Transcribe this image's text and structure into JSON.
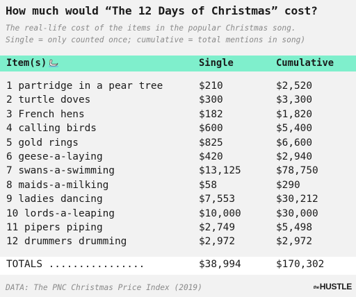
{
  "title": "How much would “The 12 Days of Christmas” cost?",
  "subtitle": [
    "The real-life cost of the items in the popular Christmas song.",
    "Single = only counted once; cumulative = total mentions in song)"
  ],
  "table": {
    "columns": [
      "Item(s)",
      "Single",
      "Cumulative"
    ],
    "header_icon": "swan-icon",
    "rows": [
      {
        "item": "1 partridge in a pear tree",
        "single": "$210",
        "cumulative": "$2,520"
      },
      {
        "item": "2 turtle doves",
        "single": "$300",
        "cumulative": "$3,300"
      },
      {
        "item": "3 French hens",
        "single": "$182",
        "cumulative": "$1,820"
      },
      {
        "item": "4 calling birds",
        "single": "$600",
        "cumulative": "$5,400"
      },
      {
        "item": "5 gold rings",
        "single": "$825",
        "cumulative": "$6,600"
      },
      {
        "item": "6 geese-a-laying",
        "single": "$420",
        "cumulative": "$2,940"
      },
      {
        "item": "7 swans-a-swimming",
        "single": "$13,125",
        "cumulative": "$78,750"
      },
      {
        "item": "8 maids-a-milking",
        "single": "$58",
        "cumulative": "$290"
      },
      {
        "item": "9 ladies dancing",
        "single": "$7,553",
        "cumulative": "$30,212"
      },
      {
        "item": "10 lords-a-leaping",
        "single": "$10,000",
        "cumulative": "$30,000"
      },
      {
        "item": "11 pipers piping",
        "single": "$2,749",
        "cumulative": "$5,498"
      },
      {
        "item": "12 drummers drumming",
        "single": "$2,972",
        "cumulative": "$2,972"
      }
    ],
    "totals": {
      "label": "TOTALS ................",
      "single": "$38,994",
      "cumulative": "$170,302"
    }
  },
  "source": "DATA: The PNC Christmas Price Index (2019)",
  "logo": {
    "prefix": "the",
    "name": "HUSTLE"
  },
  "colors": {
    "header_band": "#7fefcc",
    "background": "#f2f2f2",
    "muted_text": "#8a8a8a"
  }
}
